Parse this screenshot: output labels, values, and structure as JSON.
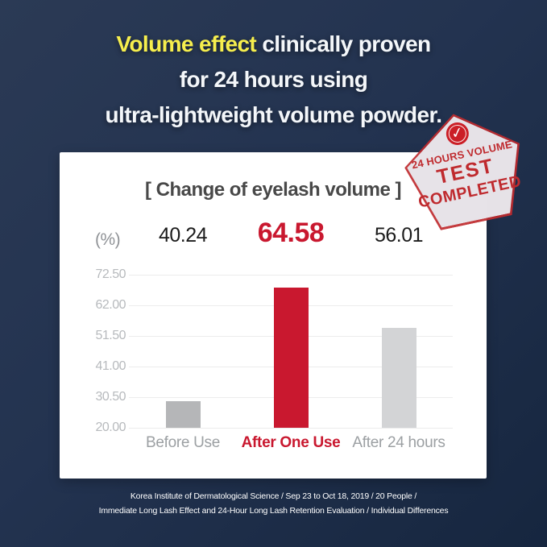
{
  "header": {
    "title_highlight": "Volume effect",
    "title_rest": " clinically proven",
    "title_line2": "for 24 hours using",
    "title_line3": "ultra-lightweight volume powder.",
    "highlight_color": "#f6ee4d",
    "background_color": "#233350"
  },
  "stamp": {
    "line1": "24 HOURS VOLUME",
    "line2": "TEST",
    "line3": "COMPLETED",
    "check_icon": "✓",
    "stamp_red": "#bf2a2e",
    "fill_color": "#e9ecf1"
  },
  "chart_data": {
    "type": "bar",
    "title": "[ Change of eyelash volume ]",
    "unit_label": "(%)",
    "categories": [
      "Before Use",
      "After One Use",
      "After 24 hours"
    ],
    "values": [
      40.24,
      64.58,
      56.01
    ],
    "value_labels": [
      "40.24",
      "64.58",
      "56.01"
    ],
    "bar_display_values": [
      29.0,
      68.1,
      54.3
    ],
    "yticks": [
      "72.50",
      "62.00",
      "51.50",
      "41.00",
      "30.50",
      "20.00"
    ],
    "ylim": [
      20.0,
      72.5
    ],
    "grid": true,
    "legend_position": "none",
    "highlight_index": 1,
    "bar_colors": [
      "#b5b6b8",
      "#c9182f",
      "#d3d4d6"
    ],
    "value_colors": [
      "#1b1b1b",
      "#c9182f",
      "#1b1b1b"
    ],
    "category_colors": [
      "#9ca0a3",
      "#c9182f",
      "#9ca0a3"
    ]
  },
  "footer": {
    "line1": "Korea Institute of Dermatological Science / Sep 23 to Oct 18, 2019 / 20 People /",
    "line2": "Immediate Long Lash Effect and 24-Hour Long Lash Retention Evaluation / Individual Differences"
  }
}
